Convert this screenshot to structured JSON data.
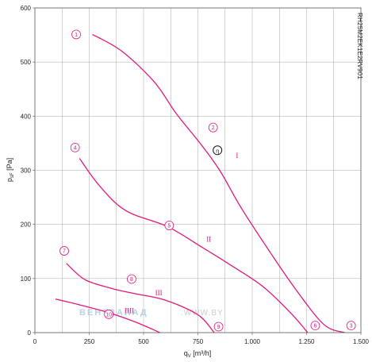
{
  "chart_data": {
    "type": "line",
    "title": "",
    "model_label": "RH25M2EK1E2RV901",
    "xlabel": "q",
    "xlabel_sub": "V",
    "xlabel_unit": " [m³/h]",
    "ylabel": "p",
    "ylabel_sub": "sF",
    "ylabel_unit": " [Pa]",
    "xlim": [
      0,
      1500
    ],
    "ylim": [
      0,
      600
    ],
    "x_ticks": [
      {
        "value": 0,
        "label": "0"
      },
      {
        "value": 250,
        "label": "250"
      },
      {
        "value": 500,
        "label": "500"
      },
      {
        "value": 750,
        "label": "750"
      },
      {
        "value": 1000,
        "label": "1.000"
      },
      {
        "value": 1250,
        "label": "1.250"
      },
      {
        "value": 1500,
        "label": "1.500"
      }
    ],
    "x_minor_step": 125,
    "y_ticks": [
      {
        "value": 0,
        "label": "0"
      },
      {
        "value": 100,
        "label": "100"
      },
      {
        "value": 200,
        "label": "200"
      },
      {
        "value": 300,
        "label": "300"
      },
      {
        "value": 400,
        "label": "400"
      },
      {
        "value": 500,
        "label": "500"
      },
      {
        "value": 600,
        "label": "600"
      }
    ],
    "grid": true,
    "curve_color": "#e0187a",
    "series": [
      {
        "name": "I",
        "points": [
          [
            265,
            551
          ],
          [
            400,
            520
          ],
          [
            550,
            463
          ],
          [
            650,
            405
          ],
          [
            760,
            350
          ],
          [
            850,
            300
          ],
          [
            950,
            230
          ],
          [
            1080,
            150
          ],
          [
            1200,
            80
          ],
          [
            1330,
            15
          ],
          [
            1425,
            0
          ]
        ]
      },
      {
        "name": "II",
        "points": [
          [
            205,
            322
          ],
          [
            300,
            270
          ],
          [
            420,
            225
          ],
          [
            610,
            196
          ],
          [
            760,
            160
          ],
          [
            900,
            125
          ],
          [
            1050,
            85
          ],
          [
            1180,
            35
          ],
          [
            1255,
            0
          ]
        ]
      },
      {
        "name": "III",
        "points": [
          [
            145,
            128
          ],
          [
            230,
            98
          ],
          [
            350,
            82
          ],
          [
            460,
            72
          ],
          [
            600,
            60
          ],
          [
            750,
            33
          ],
          [
            825,
            0
          ]
        ]
      },
      {
        "name": "",
        "points": [
          [
            95,
            62
          ],
          [
            200,
            52
          ],
          [
            330,
            38
          ],
          [
            460,
            20
          ],
          [
            575,
            0
          ]
        ]
      }
    ],
    "markers": [
      {
        "label": "1",
        "x": 190,
        "y": 551
      },
      {
        "label": "2",
        "x": 820,
        "y": 379
      },
      {
        "label": "3",
        "x": 1455,
        "y": 13
      },
      {
        "label": "4",
        "x": 185,
        "y": 342
      },
      {
        "label": "5",
        "x": 618,
        "y": 198
      },
      {
        "label": "6",
        "x": 1290,
        "y": 13
      },
      {
        "label": "7",
        "x": 135,
        "y": 151
      },
      {
        "label": "8",
        "x": 445,
        "y": 99
      },
      {
        "label": "9",
        "x": 845,
        "y": 11
      },
      {
        "label": "10",
        "x": 340,
        "y": 34
      }
    ],
    "optimal_point": {
      "label": "η",
      "x": 840,
      "y": 337
    },
    "speed_labels": [
      {
        "label": "I",
        "x": 930,
        "y": 323
      },
      {
        "label": "II",
        "x": 800,
        "y": 168
      },
      {
        "label": "III",
        "x": 570,
        "y": 69
      },
      {
        "label": "IIII",
        "x": 435,
        "y": 36
      }
    ],
    "watermark": {
      "part1": "ВЕНТЗАПАД",
      "part2": ".WWW.BY"
    }
  }
}
